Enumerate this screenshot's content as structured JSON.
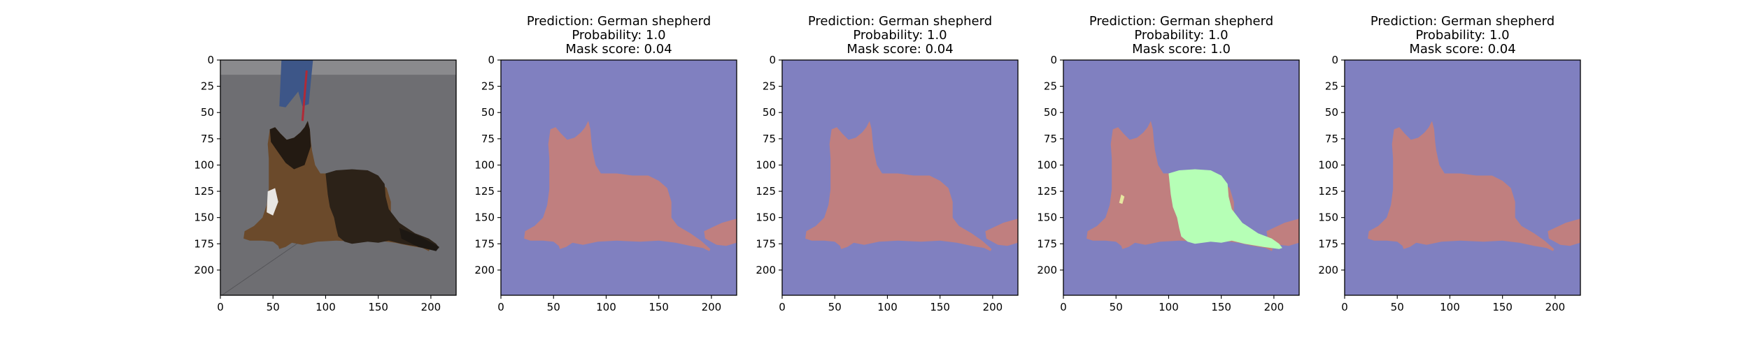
{
  "figure": {
    "background": "#ffffff",
    "colors": {
      "background_region": "#8080c0",
      "dog_region": "#c07f7f",
      "second_dog_region": "#c07f7f",
      "highlight_region": "#b6ffb6",
      "highlight_small": "#e6e6a0",
      "photo_floor": "#6e6e72",
      "axis_color": "#000000"
    }
  },
  "chart_data": [
    {
      "type": "image",
      "content": "photo of a German shepherd lying on a grey floor, person's legs and red leash behind",
      "title_lines": [],
      "xlim": [
        0,
        224
      ],
      "ylim": [
        224,
        0
      ],
      "xticks": [
        "0",
        "50",
        "100",
        "150",
        "200"
      ],
      "yticks": [
        "0",
        "25",
        "50",
        "75",
        "100",
        "125",
        "150",
        "175",
        "200"
      ]
    },
    {
      "type": "heatmap",
      "content": "segmentation mask",
      "title_lines": [
        "Prediction: German shepherd",
        "Probability: 1.0",
        "Mask score: 0.04"
      ],
      "highlight": "none",
      "xlim": [
        0,
        224
      ],
      "ylim": [
        224,
        0
      ],
      "xticks": [
        "0",
        "50",
        "100",
        "150",
        "200"
      ],
      "yticks": [
        "0",
        "25",
        "50",
        "75",
        "100",
        "125",
        "150",
        "175",
        "200"
      ]
    },
    {
      "type": "heatmap",
      "content": "segmentation mask",
      "title_lines": [
        "Prediction: German shepherd",
        "Probability: 1.0",
        "Mask score: 0.04"
      ],
      "highlight": "none",
      "xlim": [
        0,
        224
      ],
      "ylim": [
        224,
        0
      ],
      "xticks": [
        "0",
        "50",
        "100",
        "150",
        "200"
      ],
      "yticks": [
        "0",
        "25",
        "50",
        "75",
        "100",
        "125",
        "150",
        "175",
        "200"
      ]
    },
    {
      "type": "heatmap",
      "content": "segmentation mask with highlighted region",
      "title_lines": [
        "Prediction: German shepherd",
        "Probability: 1.0",
        "Mask score: 1.0"
      ],
      "highlight": "body",
      "xlim": [
        0,
        224
      ],
      "ylim": [
        224,
        0
      ],
      "xticks": [
        "0",
        "50",
        "100",
        "150",
        "200"
      ],
      "yticks": [
        "0",
        "25",
        "50",
        "75",
        "100",
        "125",
        "150",
        "175",
        "200"
      ]
    },
    {
      "type": "heatmap",
      "content": "segmentation mask",
      "title_lines": [
        "Prediction: German shepherd",
        "Probability: 1.0",
        "Mask score: 0.04"
      ],
      "highlight": "none",
      "xlim": [
        0,
        224
      ],
      "ylim": [
        224,
        0
      ],
      "xticks": [
        "0",
        "50",
        "100",
        "150",
        "200"
      ],
      "yticks": [
        "0",
        "25",
        "50",
        "75",
        "100",
        "125",
        "150",
        "175",
        "200"
      ]
    }
  ]
}
